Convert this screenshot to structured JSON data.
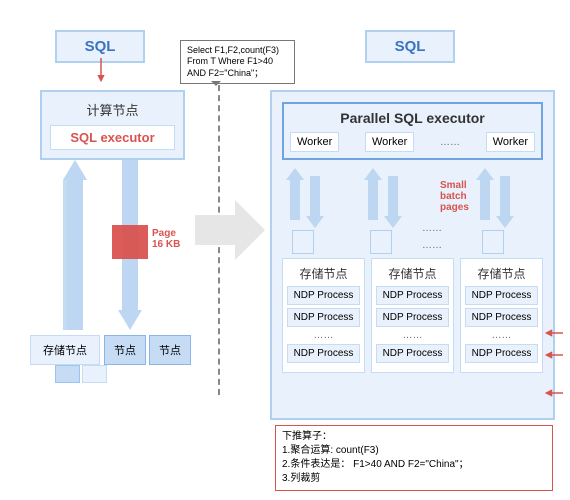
{
  "colors": {
    "panel_border": "#b0d0f0",
    "panel_bg": "#e8f1fc",
    "inner_border": "#c6dcf5",
    "red": "#d9534f",
    "blue": "#3b74c1",
    "arrow": "#bdd7f2",
    "gray_arrow": "#e6e6e6"
  },
  "left": {
    "sql_label": "SQL",
    "compute_title": "计算节点",
    "executor": "SQL executor",
    "page_label": "Page\n16 KB",
    "storage_main": "存储节点",
    "storage_small1": "节点",
    "storage_small2": "节点"
  },
  "tooltip": {
    "line1": "Select F1,F2,count(F3)",
    "line2": "From T Where F1>40",
    "line3": "AND F2=\"China\"；"
  },
  "right": {
    "sql_label": "SQL",
    "parallel_title": "Parallel SQL executor",
    "workers": [
      "Worker",
      "Worker",
      "Worker"
    ],
    "worker_ellipsis": "……",
    "small_batch": "Small\nbatch\npages",
    "flow_ellipsis": "……",
    "storage_cols": [
      {
        "title": "存储节点",
        "rows": [
          "NDP Process",
          "NDP Process",
          "……",
          "NDP Process"
        ]
      },
      {
        "title": "存储节点",
        "rows": [
          "NDP Process",
          "NDP Process",
          "……",
          "NDP Process"
        ]
      },
      {
        "title": "存储节点",
        "rows": [
          "NDP Process",
          "NDP Process",
          "……",
          "NDP Process"
        ]
      }
    ]
  },
  "annotation": {
    "title": "下推算子：",
    "l1": "1.聚合运算: count(F3)",
    "l2": "2.条件表达是： F1>40 AND F2=\"China\"；",
    "l3": "3.列裁剪"
  }
}
